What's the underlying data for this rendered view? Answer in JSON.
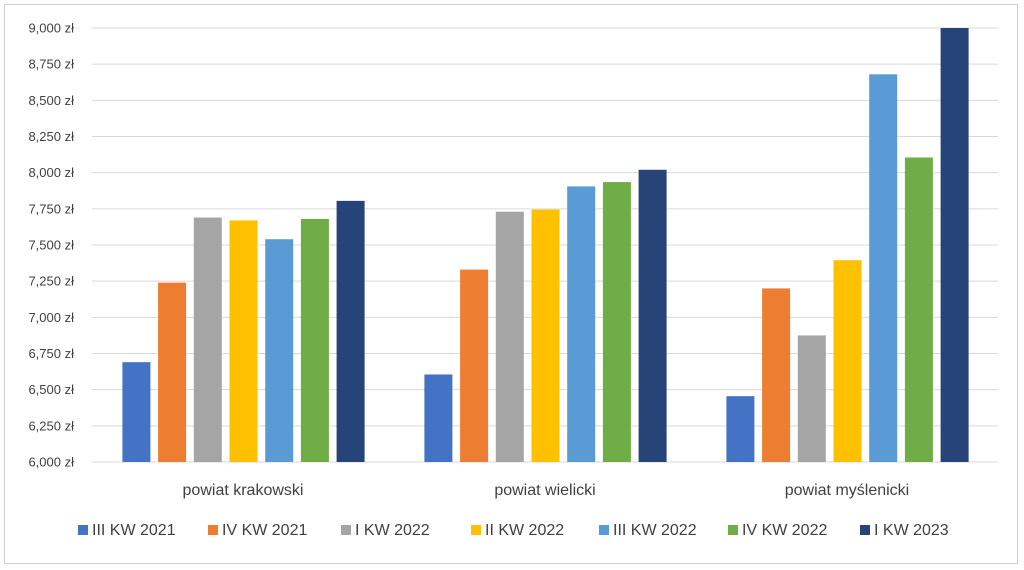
{
  "chart_data": {
    "type": "bar",
    "title": "",
    "xlabel": "",
    "ylabel": "",
    "ylim": [
      6000,
      9000
    ],
    "ytick_step": 250,
    "y_unit_suffix": " zł",
    "grid": true,
    "legend_position": "bottom",
    "categories": [
      "powiat krakowski",
      "powiat wielicki",
      "powiat myślenicki"
    ],
    "series": [
      {
        "name": "III KW 2021",
        "color": "#4472C4",
        "values": [
          6690,
          6605,
          6455
        ]
      },
      {
        "name": "IV KW 2021",
        "color": "#ED7D31",
        "values": [
          7240,
          7330,
          7200
        ]
      },
      {
        "name": "I KW 2022",
        "color": "#A5A5A5",
        "values": [
          7690,
          7730,
          6875
        ]
      },
      {
        "name": "II KW 2022",
        "color": "#FFC000",
        "values": [
          7670,
          7745,
          7395
        ]
      },
      {
        "name": "III KW 2022",
        "color": "#5B9BD5",
        "values": [
          7540,
          7905,
          8680
        ]
      },
      {
        "name": "IV KW 2022",
        "color": "#70AD47",
        "values": [
          7680,
          7935,
          8105
        ]
      },
      {
        "name": "I KW 2023",
        "color": "#264478",
        "values": [
          7805,
          8020,
          9000
        ]
      }
    ],
    "ytick_labels": [
      "6,000 zł",
      "6,250 zł",
      "6,500 zł",
      "6,750 zł",
      "7,000 zł",
      "7,250 zł",
      "7,500 zł",
      "7,750 zł",
      "8,000 zł",
      "8,250 zł",
      "8,500 zł",
      "8,750 zł",
      "9,000 zł"
    ]
  }
}
